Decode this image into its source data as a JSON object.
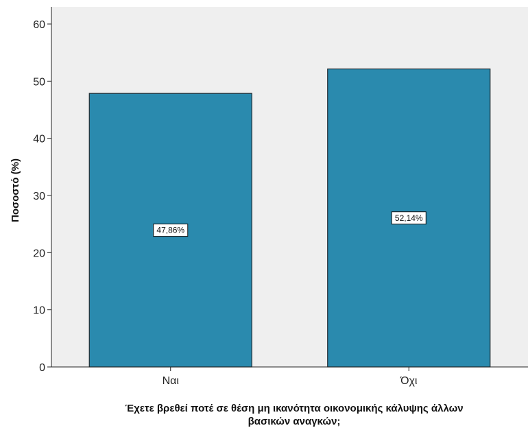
{
  "chart_data": {
    "type": "bar",
    "categories": [
      "Ναι",
      "Όχι"
    ],
    "values": [
      47.86,
      52.14
    ],
    "data_labels": [
      "47,86%",
      "52,14%"
    ],
    "title": "",
    "xlabel_lines": [
      "Έχετε βρεθεί ποτέ σε θέση μη ικανότητα οικονομικής κάλυψης άλλων",
      "βασικών αναγκών;"
    ],
    "ylabel": "Ποσοστό (%)",
    "ylim": [
      0,
      63
    ],
    "yticks": [
      0,
      10,
      20,
      30,
      40,
      50,
      60
    ],
    "grid": false,
    "legend": "none",
    "colors": {
      "bar_fill": "#2a8aae",
      "bar_stroke": "#1f2a30",
      "plot_bg": "#efefef",
      "axis": "#222222"
    }
  }
}
